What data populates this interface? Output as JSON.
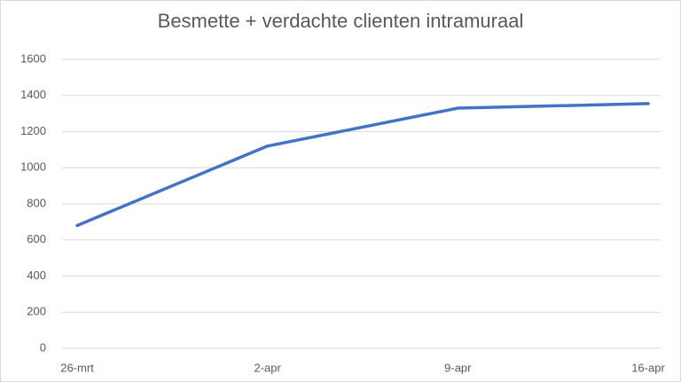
{
  "chart_data": {
    "type": "line",
    "title": "Besmette + verdachte clienten intramuraal",
    "categories": [
      "26-mrt",
      "2-apr",
      "9-apr",
      "16-apr"
    ],
    "series": [
      {
        "name": "Besmette + verdachte clienten intramuraal",
        "color": "#4472c4",
        "values": [
          680,
          1120,
          1330,
          1355
        ]
      }
    ],
    "ylim": [
      0,
      1600
    ],
    "yticks": [
      0,
      200,
      400,
      600,
      800,
      1000,
      1200,
      1400,
      1600
    ],
    "grid": true
  }
}
